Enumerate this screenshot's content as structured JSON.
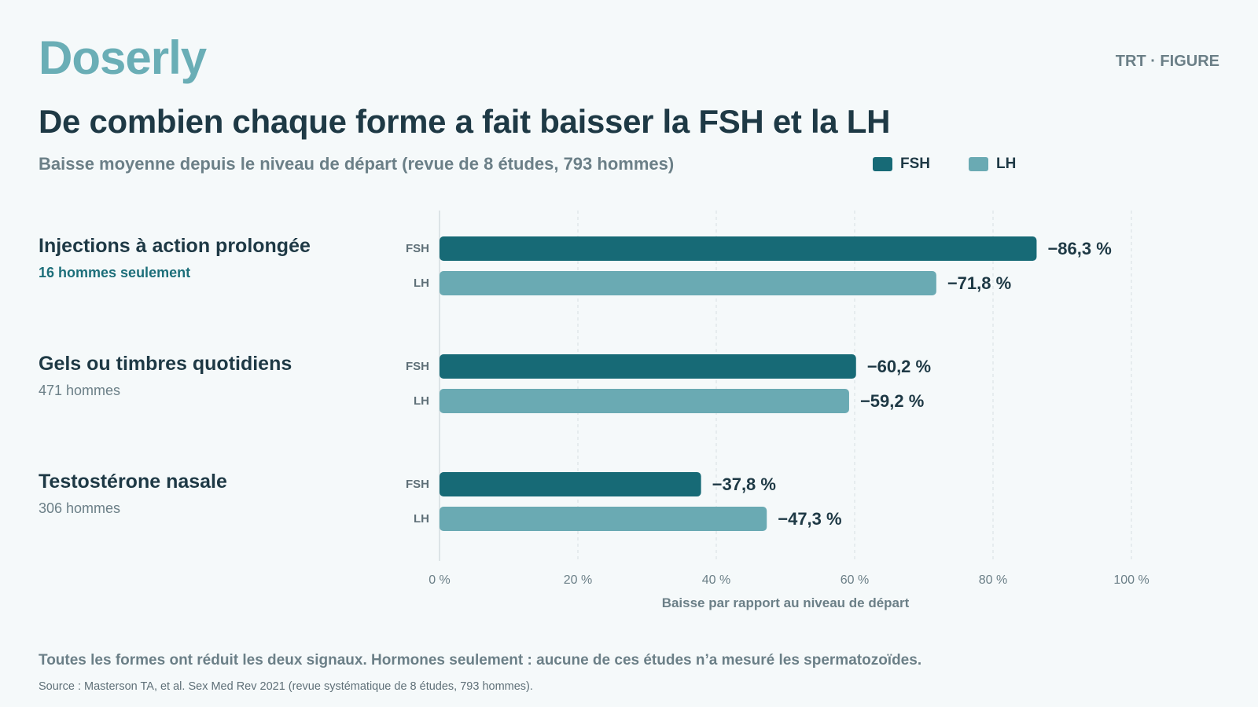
{
  "brand": {
    "logo": "Doserly",
    "tag": "TRT · FIGURE"
  },
  "header": {
    "title": "De combien chaque forme a fait baisser la FSH et la LH",
    "subtitle": "Baisse moyenne depuis le niveau de départ (revue de 8 études, 793 hommes)"
  },
  "colors": {
    "background": "#f5f9fa",
    "brand": "#6aaeb6",
    "accent_note": "#1d6f7a"
  },
  "chart_data": {
    "type": "bar",
    "orientation": "horizontal",
    "categories": [
      "Injections à action prolongée",
      "Gels ou timbres quotidiens",
      "Testostérone nasale"
    ],
    "category_notes": [
      "16 hommes seulement",
      "471 hommes",
      "306 hommes"
    ],
    "series": [
      {
        "name": "FSH",
        "color": "#176a76",
        "values": [
          86.3,
          60.2,
          37.8
        ],
        "value_labels": [
          "−86,3 %",
          "−60,2 %",
          "−37,8 %"
        ]
      },
      {
        "name": "LH",
        "color": "#6aaab3",
        "values": [
          71.8,
          59.2,
          47.3
        ],
        "value_labels": [
          "−71,8 %",
          "−59,2 %",
          "−47,3 %"
        ]
      }
    ],
    "xlabel": "Baisse par rapport au niveau de départ",
    "xlim": [
      0,
      100
    ],
    "xticks": [
      0,
      20,
      40,
      60,
      80,
      100
    ],
    "xtick_labels": [
      "0 %",
      "20 %",
      "40 %",
      "60 %",
      "80 %",
      "100 %"
    ],
    "grid": true,
    "legend_position": "top-right"
  },
  "footer": {
    "note": "Toutes les formes ont réduit les deux signaux. Hormones seulement : aucune de ces études n’a mesuré les spermatozoïdes.",
    "source": "Source : Masterson TA, et al. Sex Med Rev 2021 (revue systématique de 8 études, 793 hommes)."
  }
}
